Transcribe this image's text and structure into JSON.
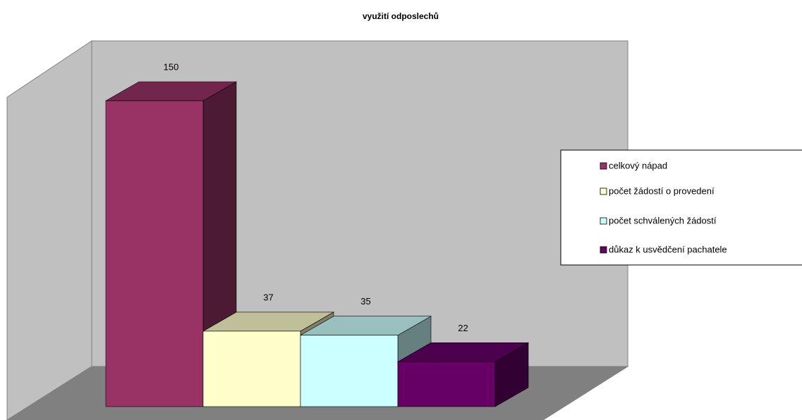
{
  "chart_data": {
    "type": "bar3d",
    "title": "využití odposlechů",
    "series": [
      {
        "name": "celkový nápad",
        "color": "#993366",
        "values": [
          150
        ]
      },
      {
        "name": "počet žádostí o provedení",
        "color": "#ffffcc",
        "values": [
          37
        ]
      },
      {
        "name": "počet schválených žádostí",
        "color": "#ccffff",
        "values": [
          35
        ]
      },
      {
        "name": "důkaz k usvědčení pachatele",
        "color": "#660066",
        "values": [
          22
        ]
      }
    ]
  }
}
